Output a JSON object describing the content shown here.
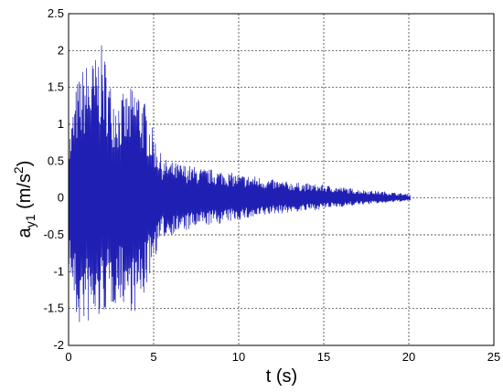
{
  "chart_data": {
    "type": "line",
    "title": "",
    "xlabel": "t (s)",
    "ylabel": {
      "base": "a",
      "subscript": "y1",
      "unit_prefix": " (m/s",
      "unit_superscript": "2",
      "unit_suffix": ")"
    },
    "xlim": [
      0,
      25
    ],
    "ylim": [
      -2,
      2.5
    ],
    "xticks": [
      "0",
      "5",
      "10",
      "15",
      "20",
      "25"
    ],
    "yticks": [
      "-2",
      "-1.5",
      "-1",
      "-0.5",
      "0",
      "0.5",
      "1",
      "1.5",
      "2",
      "2.5"
    ],
    "grid": true,
    "series": [
      {
        "color": "#1f1fb4",
        "description": "decaying oscillation, dense signal",
        "signal_end_x": 20.1,
        "envelope": {
          "x": [
            0,
            0.5,
            1,
            1.5,
            2,
            2.5,
            3,
            3.5,
            4,
            4.5,
            5,
            5.5,
            6,
            7,
            8,
            9,
            10,
            11,
            12,
            13,
            14,
            15,
            16,
            17,
            18,
            19,
            20.1
          ],
          "upper": [
            0.8,
            1.6,
            1.85,
            1.9,
            2.1,
            1.55,
            1.4,
            1.45,
            1.6,
            1.3,
            0.9,
            0.55,
            0.5,
            0.45,
            0.4,
            0.38,
            0.32,
            0.3,
            0.25,
            0.22,
            0.2,
            0.18,
            0.15,
            0.12,
            0.1,
            0.08,
            0.05
          ],
          "lower": [
            -0.9,
            -1.8,
            -1.7,
            -1.8,
            -1.6,
            -1.5,
            -1.4,
            -1.5,
            -1.6,
            -1.3,
            -0.85,
            -0.55,
            -0.5,
            -0.45,
            -0.38,
            -0.35,
            -0.3,
            -0.28,
            -0.22,
            -0.2,
            -0.18,
            -0.15,
            -0.12,
            -0.1,
            -0.08,
            -0.06,
            -0.04
          ]
        }
      }
    ]
  }
}
